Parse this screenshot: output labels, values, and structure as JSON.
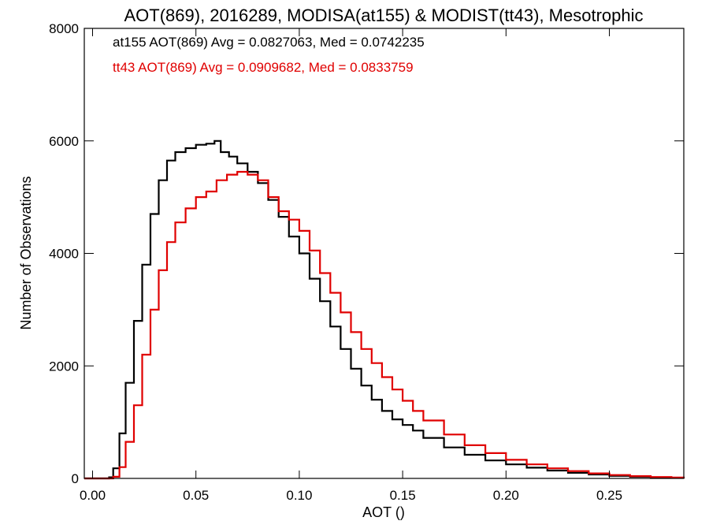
{
  "chart_data": {
    "type": "line",
    "title": "AOT(869), 2016289, MODISA(at155) & MODIST(tt43), Mesotrophic",
    "xlabel": "AOT ()",
    "ylabel": "Number of Observations",
    "xlim": [
      -0.004,
      0.286
    ],
    "ylim": [
      0,
      8000
    ],
    "xticks": [
      0.0,
      0.05,
      0.1,
      0.15,
      0.2,
      0.25
    ],
    "xtick_labels": [
      "0.00",
      "0.05",
      "0.10",
      "0.15",
      "0.20",
      "0.25"
    ],
    "yticks": [
      0,
      2000,
      4000,
      6000,
      8000
    ],
    "ytick_labels": [
      "0",
      "2000",
      "4000",
      "6000",
      "8000"
    ],
    "step_style": "histogram-step",
    "annotations": [
      {
        "text": "at155 AOT(869) Avg = 0.0827063, Med = 0.0742235",
        "color": "#000000"
      },
      {
        "text": "tt43 AOT(869) Avg = 0.0909682, Med = 0.0833759",
        "color": "#e00000"
      }
    ],
    "series": [
      {
        "color": "#000000",
        "x": [
          -0.004,
          0.005,
          0.008,
          0.01,
          0.013,
          0.016,
          0.02,
          0.024,
          0.028,
          0.032,
          0.036,
          0.04,
          0.045,
          0.05,
          0.055,
          0.059,
          0.062,
          0.066,
          0.07,
          0.075,
          0.08,
          0.085,
          0.09,
          0.095,
          0.1,
          0.105,
          0.11,
          0.115,
          0.12,
          0.125,
          0.13,
          0.135,
          0.14,
          0.145,
          0.15,
          0.155,
          0.16,
          0.17,
          0.18,
          0.19,
          0.2,
          0.21,
          0.22,
          0.23,
          0.24,
          0.25,
          0.26,
          0.27,
          0.28,
          0.286
        ],
        "values": [
          0,
          0,
          20,
          180,
          800,
          1700,
          2800,
          3800,
          4700,
          5300,
          5650,
          5800,
          5870,
          5930,
          5950,
          6000,
          5800,
          5720,
          5600,
          5450,
          5250,
          4950,
          4650,
          4300,
          4000,
          3550,
          3150,
          2700,
          2300,
          1950,
          1650,
          1400,
          1200,
          1050,
          950,
          850,
          720,
          550,
          420,
          320,
          250,
          190,
          140,
          100,
          70,
          45,
          30,
          20,
          10,
          0
        ]
      },
      {
        "color": "#e00000",
        "x": [
          -0.004,
          0.007,
          0.01,
          0.013,
          0.016,
          0.02,
          0.024,
          0.028,
          0.032,
          0.036,
          0.04,
          0.045,
          0.05,
          0.055,
          0.06,
          0.065,
          0.07,
          0.075,
          0.08,
          0.085,
          0.09,
          0.095,
          0.1,
          0.105,
          0.11,
          0.115,
          0.12,
          0.125,
          0.13,
          0.135,
          0.14,
          0.145,
          0.15,
          0.155,
          0.16,
          0.17,
          0.18,
          0.19,
          0.2,
          0.21,
          0.22,
          0.23,
          0.24,
          0.25,
          0.26,
          0.27,
          0.28,
          0.286
        ],
        "values": [
          0,
          0,
          30,
          200,
          650,
          1300,
          2200,
          3000,
          3700,
          4200,
          4550,
          4800,
          5000,
          5100,
          5300,
          5400,
          5450,
          5400,
          5300,
          5000,
          4750,
          4600,
          4400,
          4050,
          3650,
          3300,
          2950,
          2600,
          2300,
          2050,
          1800,
          1580,
          1380,
          1200,
          1030,
          780,
          590,
          450,
          330,
          250,
          180,
          130,
          90,
          60,
          40,
          25,
          15,
          5
        ]
      }
    ]
  }
}
